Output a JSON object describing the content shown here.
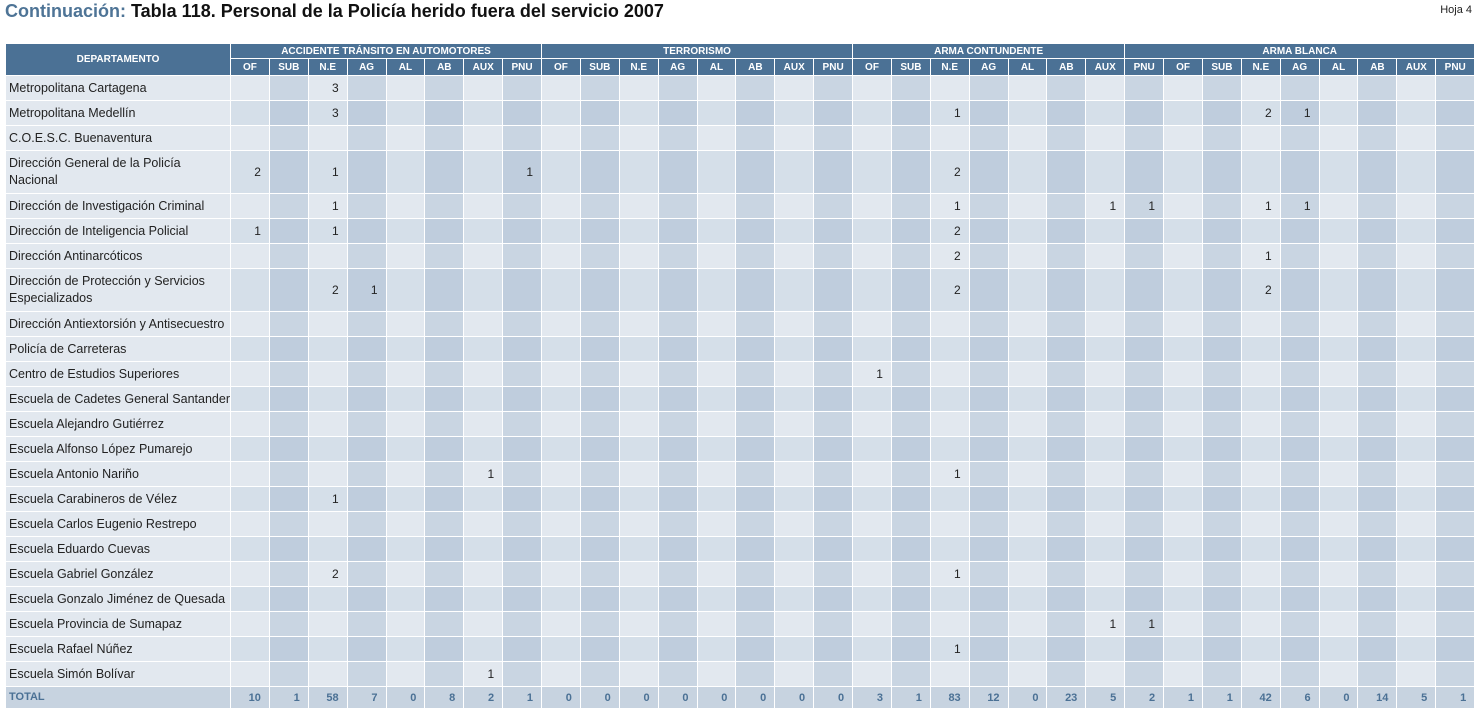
{
  "header": {
    "continuation": "Continuación:",
    "title": "Tabla 118.  Personal de la Policía herido fuera del servicio 2007",
    "sheet": "Hoja 4"
  },
  "table": {
    "dept_header": "DEPARTAMENTO",
    "groups": [
      {
        "label": "ACCIDENTE TRÁNSITO EN AUTOMOTORES",
        "span": 8
      },
      {
        "label": "TERRORISMO",
        "span": 8
      },
      {
        "label": "ARMA CONTUNDENTE",
        "span": 7
      },
      {
        "label": "ARMA BLANCA",
        "span": 9
      }
    ],
    "subheaders": [
      "OF",
      "SUB",
      "N.E",
      "AG",
      "AL",
      "AB",
      "AUX",
      "PNU",
      "OF",
      "SUB",
      "N.E",
      "AG",
      "AL",
      "AB",
      "AUX",
      "PNU",
      "OF",
      "SUB",
      "N.E",
      "AG",
      "AL",
      "AB",
      "AUX",
      "PNU",
      "OF",
      "SUB",
      "N.E",
      "AG",
      "AL",
      "AB",
      "AUX",
      "PNU"
    ],
    "rows": [
      {
        "name": "Metropolitana Cartagena",
        "cells": [
          "",
          "",
          "3",
          "",
          "",
          "",
          "",
          "",
          "",
          "",
          "",
          "",
          "",
          "",
          "",
          "",
          "",
          "",
          "",
          "",
          "",
          "",
          "",
          "",
          "",
          "",
          "",
          "",
          "",
          "",
          "",
          ""
        ]
      },
      {
        "name": "Metropolitana Medellín",
        "cells": [
          "",
          "",
          "3",
          "",
          "",
          "",
          "",
          "",
          "",
          "",
          "",
          "",
          "",
          "",
          "",
          "",
          "",
          "",
          "1",
          "",
          "",
          "",
          "",
          "",
          "",
          "",
          "2",
          "1",
          "",
          "",
          "",
          ""
        ]
      },
      {
        "name": "C.O.E.S.C. Buenaventura",
        "cells": [
          "",
          "",
          "",
          "",
          "",
          "",
          "",
          "",
          "",
          "",
          "",
          "",
          "",
          "",
          "",
          "",
          "",
          "",
          "",
          "",
          "",
          "",
          "",
          "",
          "",
          "",
          "",
          "",
          "",
          "",
          "",
          ""
        ]
      },
      {
        "name": "Dirección General de la Policía Nacional",
        "tall": true,
        "cells": [
          "2",
          "",
          "1",
          "",
          "",
          "",
          "",
          "1",
          "",
          "",
          "",
          "",
          "",
          "",
          "",
          "",
          "",
          "",
          "2",
          "",
          "",
          "",
          "",
          "",
          "",
          "",
          "",
          "",
          "",
          "",
          "",
          ""
        ]
      },
      {
        "name": "Dirección de Investigación Criminal",
        "cells": [
          "",
          "",
          "1",
          "",
          "",
          "",
          "",
          "",
          "",
          "",
          "",
          "",
          "",
          "",
          "",
          "",
          "",
          "",
          "1",
          "",
          "",
          "",
          "1",
          "1",
          "",
          "",
          "1",
          "1",
          "",
          "",
          "",
          ""
        ]
      },
      {
        "name": "Dirección de Inteligencia Policial",
        "cells": [
          "1",
          "",
          "1",
          "",
          "",
          "",
          "",
          "",
          "",
          "",
          "",
          "",
          "",
          "",
          "",
          "",
          "",
          "",
          "2",
          "",
          "",
          "",
          "",
          "",
          "",
          "",
          "",
          "",
          "",
          "",
          "",
          ""
        ]
      },
      {
        "name": "Dirección Antinarcóticos",
        "cells": [
          "",
          "",
          "",
          "",
          "",
          "",
          "",
          "",
          "",
          "",
          "",
          "",
          "",
          "",
          "",
          "",
          "",
          "",
          "2",
          "",
          "",
          "",
          "",
          "",
          "",
          "",
          "1",
          "",
          "",
          "",
          "",
          ""
        ]
      },
      {
        "name": "Dirección de Protección y Servicios Especializados",
        "tall": true,
        "cells": [
          "",
          "",
          "2",
          "1",
          "",
          "",
          "",
          "",
          "",
          "",
          "",
          "",
          "",
          "",
          "",
          "",
          "",
          "",
          "2",
          "",
          "",
          "",
          "",
          "",
          "",
          "",
          "2",
          "",
          "",
          "",
          "",
          ""
        ]
      },
      {
        "name": "Dirección Antiextorsión y Antisecuestro",
        "cells": [
          "",
          "",
          "",
          "",
          "",
          "",
          "",
          "",
          "",
          "",
          "",
          "",
          "",
          "",
          "",
          "",
          "",
          "",
          "",
          "",
          "",
          "",
          "",
          "",
          "",
          "",
          "",
          "",
          "",
          "",
          "",
          ""
        ]
      },
      {
        "name": "Policía de Carreteras",
        "cells": [
          "",
          "",
          "",
          "",
          "",
          "",
          "",
          "",
          "",
          "",
          "",
          "",
          "",
          "",
          "",
          "",
          "",
          "",
          "",
          "",
          "",
          "",
          "",
          "",
          "",
          "",
          "",
          "",
          "",
          "",
          "",
          ""
        ]
      },
      {
        "name": "Centro de Estudios Superiores",
        "cells": [
          "",
          "",
          "",
          "",
          "",
          "",
          "",
          "",
          "",
          "",
          "",
          "",
          "",
          "",
          "",
          "",
          "1",
          "",
          "",
          "",
          "",
          "",
          "",
          "",
          "",
          "",
          "",
          "",
          "",
          "",
          "",
          ""
        ]
      },
      {
        "name": "Escuela de Cadetes General Santander",
        "cells": [
          "",
          "",
          "",
          "",
          "",
          "",
          "",
          "",
          "",
          "",
          "",
          "",
          "",
          "",
          "",
          "",
          "",
          "",
          "",
          "",
          "",
          "",
          "",
          "",
          "",
          "",
          "",
          "",
          "",
          "",
          "",
          ""
        ]
      },
      {
        "name": "Escuela Alejandro Gutiérrez",
        "cells": [
          "",
          "",
          "",
          "",
          "",
          "",
          "",
          "",
          "",
          "",
          "",
          "",
          "",
          "",
          "",
          "",
          "",
          "",
          "",
          "",
          "",
          "",
          "",
          "",
          "",
          "",
          "",
          "",
          "",
          "",
          "",
          ""
        ]
      },
      {
        "name": "Escuela Alfonso López Pumarejo",
        "cells": [
          "",
          "",
          "",
          "",
          "",
          "",
          "",
          "",
          "",
          "",
          "",
          "",
          "",
          "",
          "",
          "",
          "",
          "",
          "",
          "",
          "",
          "",
          "",
          "",
          "",
          "",
          "",
          "",
          "",
          "",
          "",
          ""
        ]
      },
      {
        "name": "Escuela Antonio Nariño",
        "cells": [
          "",
          "",
          "",
          "",
          "",
          "",
          "1",
          "",
          "",
          "",
          "",
          "",
          "",
          "",
          "",
          "",
          "",
          "",
          "1",
          "",
          "",
          "",
          "",
          "",
          "",
          "",
          "",
          "",
          "",
          "",
          "",
          ""
        ]
      },
      {
        "name": "Escuela Carabineros de Vélez",
        "cells": [
          "",
          "",
          "1",
          "",
          "",
          "",
          "",
          "",
          "",
          "",
          "",
          "",
          "",
          "",
          "",
          "",
          "",
          "",
          "",
          "",
          "",
          "",
          "",
          "",
          "",
          "",
          "",
          "",
          "",
          "",
          "",
          ""
        ]
      },
      {
        "name": "Escuela Carlos Eugenio Restrepo",
        "cells": [
          "",
          "",
          "",
          "",
          "",
          "",
          "",
          "",
          "",
          "",
          "",
          "",
          "",
          "",
          "",
          "",
          "",
          "",
          "",
          "",
          "",
          "",
          "",
          "",
          "",
          "",
          "",
          "",
          "",
          "",
          "",
          ""
        ]
      },
      {
        "name": "Escuela Eduardo Cuevas",
        "cells": [
          "",
          "",
          "",
          "",
          "",
          "",
          "",
          "",
          "",
          "",
          "",
          "",
          "",
          "",
          "",
          "",
          "",
          "",
          "",
          "",
          "",
          "",
          "",
          "",
          "",
          "",
          "",
          "",
          "",
          "",
          "",
          ""
        ]
      },
      {
        "name": "Escuela Gabriel González",
        "cells": [
          "",
          "",
          "2",
          "",
          "",
          "",
          "",
          "",
          "",
          "",
          "",
          "",
          "",
          "",
          "",
          "",
          "",
          "",
          "1",
          "",
          "",
          "",
          "",
          "",
          "",
          "",
          "",
          "",
          "",
          "",
          "",
          ""
        ]
      },
      {
        "name": "Escuela Gonzalo Jiménez de Quesada",
        "cells": [
          "",
          "",
          "",
          "",
          "",
          "",
          "",
          "",
          "",
          "",
          "",
          "",
          "",
          "",
          "",
          "",
          "",
          "",
          "",
          "",
          "",
          "",
          "",
          "",
          "",
          "",
          "",
          "",
          "",
          "",
          "",
          ""
        ]
      },
      {
        "name": "Escuela Provincia de Sumapaz",
        "cells": [
          "",
          "",
          "",
          "",
          "",
          "",
          "",
          "",
          "",
          "",
          "",
          "",
          "",
          "",
          "",
          "",
          "",
          "",
          "",
          "",
          "",
          "",
          "1",
          "1",
          "",
          "",
          "",
          "",
          "",
          "",
          "",
          ""
        ]
      },
      {
        "name": "Escuela Rafael Núñez",
        "cells": [
          "",
          "",
          "",
          "",
          "",
          "",
          "",
          "",
          "",
          "",
          "",
          "",
          "",
          "",
          "",
          "",
          "",
          "",
          "1",
          "",
          "",
          "",
          "",
          "",
          "",
          "",
          "",
          "",
          "",
          "",
          "",
          ""
        ]
      },
      {
        "name": "Escuela Simón Bolívar",
        "cells": [
          "",
          "",
          "",
          "",
          "",
          "",
          "1",
          "",
          "",
          "",
          "",
          "",
          "",
          "",
          "",
          "",
          "",
          "",
          "",
          "",
          "",
          "",
          "",
          "",
          "",
          "",
          "",
          "",
          "",
          "",
          "",
          ""
        ]
      }
    ],
    "total": {
      "label": "TOTAL",
      "cells": [
        "10",
        "1",
        "58",
        "7",
        "0",
        "8",
        "2",
        "1",
        "0",
        "0",
        "0",
        "0",
        "0",
        "0",
        "0",
        "0",
        "3",
        "1",
        "83",
        "12",
        "0",
        "23",
        "5",
        "2",
        "1",
        "1",
        "42",
        "6",
        "0",
        "14",
        "5",
        "1"
      ]
    }
  }
}
